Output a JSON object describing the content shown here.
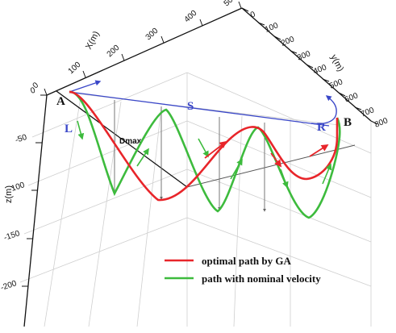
{
  "chart_data": {
    "type": "line",
    "projection": "3d-perspective",
    "x_axis": {
      "label": "X(m)",
      "ticks": [
        "0",
        "100",
        "200",
        "300",
        "400",
        "500"
      ]
    },
    "y_axis": {
      "label": "y(m)",
      "ticks": [
        "0",
        "100",
        "200",
        "300",
        "400",
        "500",
        "600",
        "700",
        "800"
      ]
    },
    "z_axis": {
      "label": "z(m)",
      "ticks": [
        "0",
        "-50",
        "-100",
        "-150",
        "-200"
      ]
    },
    "point_labels": {
      "start": "A",
      "end": "B"
    },
    "segment_labels": {
      "left_turn": "L",
      "straight": "S",
      "right_turn": "R"
    },
    "annotation": "Dmax",
    "series": [
      {
        "name": "optimal path by GA",
        "color": "#e8252a",
        "oscillation_minima_z_approx": [
          -110,
          -90
        ]
      },
      {
        "name": "path with nominal velocity",
        "color": "#3dbb3d",
        "oscillation_minima_z_approx": [
          -100,
          -105,
          -115
        ]
      }
    ],
    "reference_path_color": "#3a47c8",
    "legend": {
      "position": "bottom-right"
    }
  }
}
